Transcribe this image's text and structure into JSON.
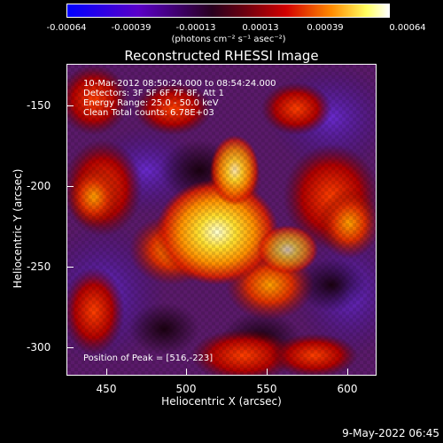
{
  "colorbar": {
    "tick_labels": [
      "-0.00064",
      "-0.00039",
      "-0.00013",
      "0.00013",
      "0.00039",
      "0.00064"
    ],
    "units": "(photons cm⁻² s⁻¹ asec⁻²)",
    "colors": [
      "#0000ff",
      "#5a00c8",
      "#28001e",
      "#c80000",
      "#ff7a00",
      "#ffff60",
      "#ffffff"
    ]
  },
  "title": "Reconstructed RHESSI Image",
  "info": {
    "time_range": "10-Mar-2012 08:50:24.000 to 08:54:24.000",
    "detectors": "Detectors: 3F 5F 6F 7F 8F, Att 1",
    "energy_range": "Energy Range: 25.0 - 50.0 keV",
    "clean_counts": "Clean     Total counts: 6.78E+03",
    "peak": "Position of Peak = [516,-223]"
  },
  "axes": {
    "xlabel": "Heliocentric X (arcsec)",
    "ylabel": "Heliocentric Y (arcsec)",
    "x_ticks": [
      "450",
      "500",
      "550",
      "600"
    ],
    "y_ticks": [
      "-150",
      "-200",
      "-250",
      "-300"
    ],
    "x_range": [
      427,
      620
    ],
    "y_range": [
      -320,
      -127
    ]
  },
  "timestamp": "9-May-2022 06:45"
}
